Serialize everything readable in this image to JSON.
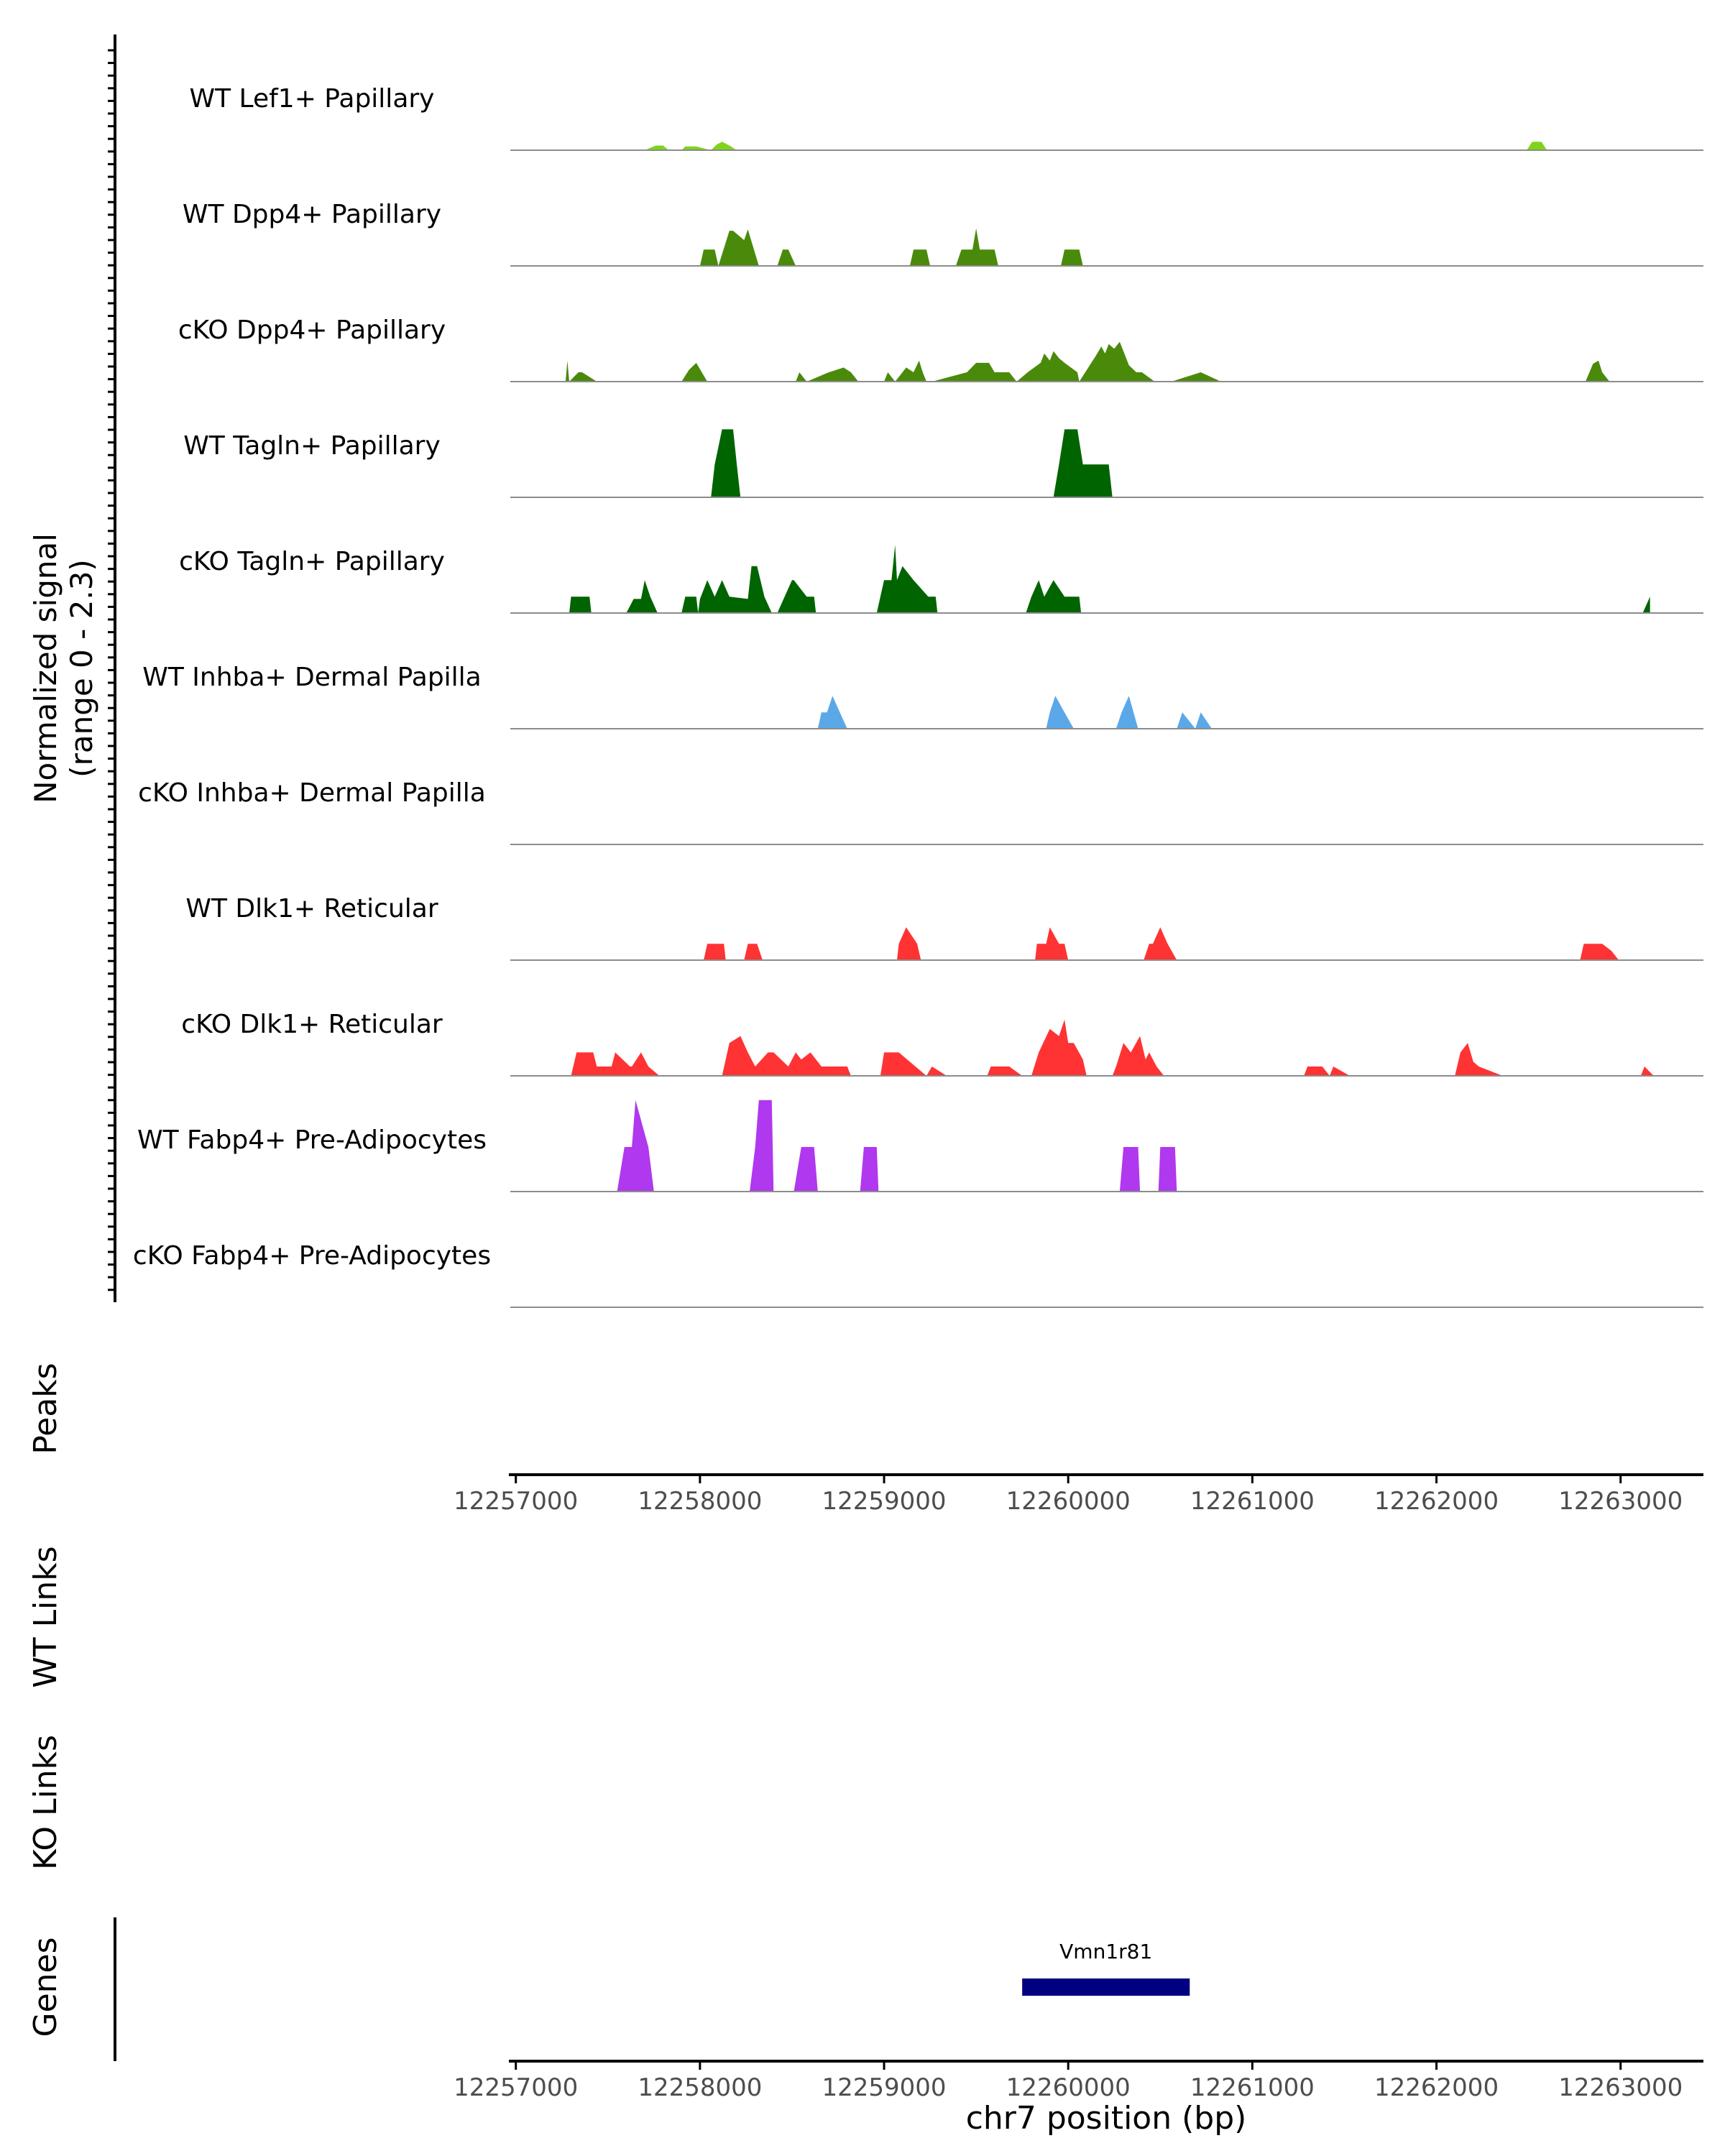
{
  "chart_data": {
    "type": "area",
    "title": "",
    "xlabel": "chr7 position (bp)",
    "xlim": [
      12256970,
      12263450
    ],
    "x_ticks": [
      "12257000",
      "12258000",
      "12259000",
      "12260000",
      "12261000",
      "12262000",
      "12263000"
    ],
    "y_axis_label_line1": "Normalized signal",
    "y_axis_label_line2": "(range 0 - 2.3)",
    "ylim": [
      0,
      2.3
    ],
    "tracks": [
      {
        "name": "WT Lef1+ Papillary",
        "color": "#7FD41A",
        "x": [
          12257700,
          12257760,
          12257800,
          12257830,
          12257900,
          12257920,
          12257980,
          12258060,
          12258090,
          12258120,
          12258160,
          12258200,
          12262490,
          12262520,
          12262570,
          12262600
        ],
        "y": [
          0,
          0.1,
          0.1,
          0,
          0,
          0.08,
          0.08,
          0,
          0.12,
          0.18,
          0.1,
          0,
          0,
          0.18,
          0.18,
          0
        ]
      },
      {
        "name": "WT Dpp4+ Papillary",
        "color": "#4A8A0A",
        "x": [
          12258000,
          12258020,
          12258080,
          12258100,
          12258160,
          12258180,
          12258240,
          12258260,
          12258320,
          12258420,
          12258450,
          12258480,
          12258520,
          12259140,
          12259160,
          12259230,
          12259250,
          12259390,
          12259420,
          12259480,
          12259500,
          12259520,
          12259600,
          12259620,
          12259960,
          12259980,
          12260060,
          12260080
        ],
        "y": [
          0,
          0.35,
          0.35,
          0,
          0.75,
          0.75,
          0.55,
          0.78,
          0,
          0,
          0.35,
          0.35,
          0,
          0,
          0.35,
          0.35,
          0,
          0,
          0.35,
          0.35,
          0.8,
          0.35,
          0.35,
          0,
          0,
          0.35,
          0.35,
          0
        ]
      },
      {
        "name": "cKO Dpp4+ Papillary",
        "color": "#4A8A0A",
        "x": [
          12257270,
          12257280,
          12257290,
          12257340,
          12257360,
          12257440,
          12257900,
          12257940,
          12257980,
          12258040,
          12258520,
          12258540,
          12258580,
          12258700,
          12258740,
          12258780,
          12258820,
          12258860,
          12259000,
          12259020,
          12259060,
          12259100,
          12259120,
          12259160,
          12259190,
          12259210,
          12259230,
          12259260,
          12259450,
          12259500,
          12259570,
          12259600,
          12259680,
          12259720,
          12259780,
          12259850,
          12259870,
          12259900,
          12259920,
          12259950,
          12259980,
          12260050,
          12260060,
          12260150,
          12260180,
          12260200,
          12260220,
          12260250,
          12260280,
          12260310,
          12260330,
          12260370,
          12260400,
          12260470,
          12260560,
          12260720,
          12260830,
          12262810,
          12262850,
          12262880,
          12262900,
          12262940
        ],
        "y": [
          0,
          0.45,
          0,
          0.2,
          0.2,
          0,
          0,
          0.25,
          0.4,
          0,
          0,
          0.2,
          0,
          0.2,
          0.25,
          0.3,
          0.2,
          0,
          0,
          0.2,
          0,
          0.2,
          0.3,
          0.2,
          0.45,
          0.2,
          0,
          0,
          0.2,
          0.4,
          0.4,
          0.2,
          0.2,
          0,
          0.2,
          0.4,
          0.6,
          0.45,
          0.65,
          0.5,
          0.4,
          0.2,
          0,
          0.55,
          0.75,
          0.6,
          0.8,
          0.7,
          0.85,
          0.55,
          0.35,
          0.2,
          0.2,
          0,
          0,
          0.2,
          0,
          0,
          0.38,
          0.45,
          0.2,
          0
        ]
      },
      {
        "name": "WT Tagln+ Papillary",
        "color": "#006400",
        "x": [
          12258060,
          12258080,
          12258120,
          12258180,
          12258200,
          12258220,
          12259920,
          12259950,
          12259980,
          12260050,
          12260080,
          12260140,
          12260220,
          12260240
        ],
        "y": [
          0,
          0.7,
          1.45,
          1.45,
          0.7,
          0,
          0,
          0.7,
          1.45,
          1.45,
          0.7,
          0.7,
          0.7,
          0
        ]
      },
      {
        "name": "cKO Tagln+ Papillary",
        "color": "#006400",
        "x": [
          12257290,
          12257300,
          12257400,
          12257410,
          12257600,
          12257640,
          12257680,
          12257700,
          12257730,
          12257770,
          12257900,
          12257920,
          12257980,
          12257990,
          12258000,
          12258040,
          12258080,
          12258120,
          12258160,
          12258260,
          12258280,
          12258310,
          12258350,
          12258390,
          12258420,
          12258500,
          12258510,
          12258580,
          12258620,
          12258630,
          12258960,
          12259000,
          12259040,
          12259060,
          12259070,
          12259100,
          12259160,
          12259240,
          12259280,
          12259290,
          12259770,
          12259800,
          12259840,
          12259870,
          12259920,
          12259980,
          12260060,
          12260070,
          12263120,
          12263160
        ],
        "y": [
          0,
          0.35,
          0.35,
          0,
          0,
          0.3,
          0.3,
          0.7,
          0.35,
          0,
          0,
          0.35,
          0.35,
          0,
          0.3,
          0.7,
          0.35,
          0.7,
          0.35,
          0.3,
          1.0,
          1.0,
          0.35,
          0,
          0,
          0.7,
          0.7,
          0.35,
          0.35,
          0,
          0,
          0.7,
          0.7,
          1.45,
          0.7,
          1.0,
          0.7,
          0.35,
          0.35,
          0,
          0,
          0.35,
          0.7,
          0.35,
          0.7,
          0.35,
          0.35,
          0,
          0,
          0.35
        ]
      },
      {
        "name": "WT Inhba+ Dermal Papilla",
        "color": "#5BA8E8",
        "x": [
          12258640,
          12258660,
          12258690,
          12258720,
          12258760,
          12258800,
          12259880,
          12259900,
          12259930,
          12259980,
          12260030,
          12260260,
          12260290,
          12260330,
          12260380,
          12260590,
          12260620,
          12260690,
          12260720,
          12260780
        ],
        "y": [
          0,
          0.35,
          0.35,
          0.7,
          0.35,
          0,
          0,
          0.35,
          0.7,
          0.35,
          0,
          0,
          0.35,
          0.7,
          0,
          0,
          0.35,
          0,
          0.35,
          0
        ]
      },
      {
        "name": "cKO Inhba+ Dermal Papilla",
        "color": "#5BA8E8",
        "x": [],
        "y": []
      },
      {
        "name": "WT Dlk1+ Reticular",
        "color": "#FF3333",
        "x": [
          12258020,
          12258040,
          12258130,
          12258140,
          12258240,
          12258260,
          12258310,
          12258340,
          12259070,
          12259080,
          12259120,
          12259180,
          12259200,
          12259820,
          12259830,
          12259880,
          12259900,
          12259950,
          12259960,
          12259980,
          12260000,
          12260410,
          12260440,
          12260460,
          12260500,
          12260540,
          12260590,
          12262780,
          12262800,
          12262880,
          12262900,
          12262950,
          12262990
        ],
        "y": [
          0,
          0.35,
          0.35,
          0,
          0,
          0.35,
          0.35,
          0,
          0,
          0.35,
          0.7,
          0.35,
          0,
          0,
          0.35,
          0.35,
          0.7,
          0.35,
          0.35,
          0.35,
          0,
          0,
          0.35,
          0.35,
          0.7,
          0.35,
          0,
          0,
          0.35,
          0.35,
          0.35,
          0.2,
          0
        ]
      },
      {
        "name": "cKO Dlk1+ Reticular",
        "color": "#FF3333",
        "x": [
          12257300,
          12257330,
          12257420,
          12257440,
          12257520,
          12257540,
          12257580,
          12257620,
          12257630,
          12257680,
          12257720,
          12257780,
          12258120,
          12258160,
          12258220,
          12258260,
          12258300,
          12258370,
          12258400,
          12258480,
          12258520,
          12258550,
          12258600,
          12258660,
          12258800,
          12258820,
          12258980,
          12259000,
          12259080,
          12259230,
          12259260,
          12259340,
          12259560,
          12259580,
          12259680,
          12259750,
          12259800,
          12259840,
          12259900,
          12259950,
          12259980,
          12260000,
          12260030,
          12260080,
          12260100,
          12260240,
          12260260,
          12260300,
          12260340,
          12260390,
          12260420,
          12260440,
          12260480,
          12260520,
          12261280,
          12261300,
          12261380,
          12261420,
          12261440,
          12261530,
          12262100,
          12262130,
          12262170,
          12262200,
          12262230,
          12262360,
          12263110,
          12263130,
          12263180
        ],
        "y": [
          0,
          0.5,
          0.5,
          0.2,
          0.2,
          0.5,
          0.35,
          0.2,
          0.2,
          0.5,
          0.2,
          0,
          0,
          0.7,
          0.85,
          0.5,
          0.2,
          0.5,
          0.5,
          0.2,
          0.5,
          0.35,
          0.5,
          0.2,
          0.2,
          0,
          0,
          0.5,
          0.5,
          0,
          0.2,
          0,
          0,
          0.2,
          0.2,
          0,
          0,
          0.5,
          1.0,
          0.85,
          1.2,
          0.7,
          0.7,
          0.35,
          0,
          0,
          0.2,
          0.7,
          0.5,
          0.85,
          0.35,
          0.5,
          0.2,
          0,
          0,
          0.2,
          0.2,
          0,
          0.2,
          0,
          0,
          0.5,
          0.7,
          0.3,
          0.2,
          0,
          0,
          0.2,
          0
        ]
      },
      {
        "name": "WT Fabp4+ Pre-Adipocytes",
        "color": "#B038EE",
        "x": [
          12257550,
          12257590,
          12257630,
          12257650,
          12257720,
          12257750,
          12258270,
          12258300,
          12258320,
          12258390,
          12258400,
          12258510,
          12258550,
          12258620,
          12258640,
          12258870,
          12258890,
          12258960,
          12258970,
          12260280,
          12260300,
          12260380,
          12260390,
          12260490,
          12260500,
          12260580,
          12260590
        ],
        "y": [
          0,
          0.95,
          0.95,
          1.95,
          0.95,
          0,
          0,
          0.95,
          1.95,
          1.95,
          0,
          0,
          0.95,
          0.95,
          0,
          0,
          0.95,
          0.95,
          0,
          0,
          0.95,
          0.95,
          0,
          0,
          0.95,
          0.95,
          0
        ]
      },
      {
        "name": "cKO Fabp4+ Pre-Adipocytes",
        "color": "#B038EE",
        "x": [],
        "y": []
      }
    ],
    "panel_labels": {
      "peaks": "Peaks",
      "wt_links": "WT Links",
      "ko_links": "KO Links",
      "genes": "Genes"
    },
    "genes": [
      {
        "name": "Vmn1r81",
        "start": 12259750,
        "end": 12260660,
        "color": "#000080"
      }
    ]
  }
}
